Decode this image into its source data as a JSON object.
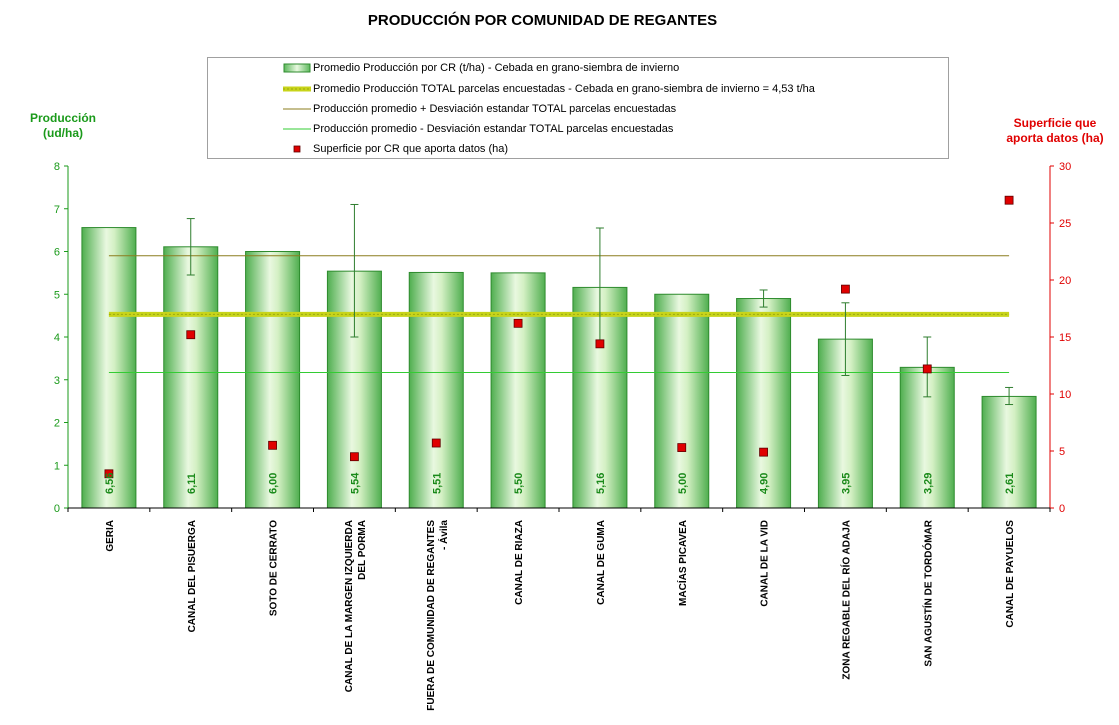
{
  "chart_data": {
    "type": "bar",
    "title": "PRODUCCIÓN POR COMUNIDAD DE REGANTES",
    "ylabel_left": "Producción (ud/ha)",
    "ylabel_right": "Superficie que aporta datos (ha)",
    "ylim_left": [
      0,
      8
    ],
    "ylim_right": [
      0,
      30
    ],
    "yticks_left": [
      "0",
      "1",
      "2",
      "3",
      "4",
      "5",
      "6",
      "7",
      "8"
    ],
    "yticks_right": [
      "0",
      "5",
      "10",
      "15",
      "20",
      "25",
      "30"
    ],
    "legend": {
      "bars": "Promedio Producción por CR (t/ha) - Cebada en grano-siembra de invierno",
      "mean_line": "Promedio Producción TOTAL parcelas encuestadas - Cebada en grano-siembra de invierno = 4,53 t/ha",
      "upper_line": "Producción promedio + Desviación estandar TOTAL parcelas encuestadas",
      "lower_line": "Producción promedio - Desviación estandar TOTAL parcelas encuestadas",
      "points": "Superficie por CR que aporta datos (ha)"
    },
    "categories": [
      [
        "GERIA"
      ],
      [
        "CANAL DEL PISUERGA"
      ],
      [
        "SOTO DE CERRATO"
      ],
      [
        "CANAL DE LA MARGEN IZQUIERDA",
        "DEL PORMA"
      ],
      [
        "FUERA DE COMUNIDAD DE REGANTES",
        "- Ávila"
      ],
      [
        "CANAL DE RIAZA"
      ],
      [
        "CANAL DE GUMA"
      ],
      [
        "MACÍAS PICAVEA"
      ],
      [
        "CANAL DE LA VID"
      ],
      [
        "ZONA REGABLE DEL RÍO ADAJA"
      ],
      [
        "SAN AGUSTÍN DE TORDÓMAR"
      ],
      [
        "CANAL DE PAYUELOS"
      ]
    ],
    "values": [
      6.56,
      6.11,
      6.0,
      5.54,
      5.51,
      5.5,
      5.16,
      5.0,
      4.9,
      3.95,
      3.29,
      2.61
    ],
    "value_labels": [
      "6,56",
      "6,11",
      "6,00",
      "5,54",
      "5,51",
      "5,50",
      "5,16",
      "5,00",
      "4,90",
      "3,95",
      "3,29",
      "2,61"
    ],
    "error_bars": [
      null,
      [
        5.45,
        6.77
      ],
      null,
      [
        4.0,
        7.1
      ],
      null,
      null,
      [
        3.8,
        6.55
      ],
      null,
      [
        4.7,
        5.1
      ],
      [
        3.1,
        4.8
      ],
      [
        2.6,
        4.0
      ],
      [
        2.42,
        2.82
      ]
    ],
    "mean": 4.53,
    "upper": 5.9,
    "lower": 3.17,
    "superficie": [
      3.0,
      15.2,
      5.5,
      4.5,
      5.7,
      16.2,
      14.4,
      5.3,
      4.9,
      19.2,
      12.2,
      27.0
    ],
    "colors": {
      "bar_fill": "#b8e4a0",
      "bar_edge": "#2e8b2e",
      "mean_line": "#c8d41a",
      "upper_line": "#8b7d1e",
      "lower_line": "#33cc33",
      "points": "#e00000",
      "left_axis": "#1a9a1a",
      "right_axis": "#e00000",
      "error_bar": "#2e7d2e"
    }
  }
}
